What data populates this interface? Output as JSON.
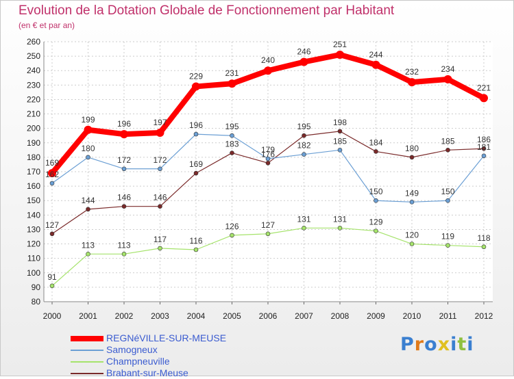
{
  "title": "Evolution de la Dotation Globale de Fonctionnement par Habitant",
  "subtitle": "(en € et par an)",
  "chart_data": {
    "type": "line",
    "x": [
      "2000",
      "2001",
      "2002",
      "2003",
      "2004",
      "2005",
      "2006",
      "2007",
      "2008",
      "2009",
      "2010",
      "2011",
      "2012"
    ],
    "ylim": [
      80,
      260
    ],
    "yticks": [
      80,
      90,
      100,
      110,
      120,
      130,
      140,
      150,
      160,
      170,
      180,
      190,
      200,
      210,
      220,
      230,
      240,
      250,
      260
    ],
    "grid": true,
    "legend_position": "bottom-left",
    "series": [
      {
        "name": "REGNéVILLE-SUR-MEUSE",
        "color": "#ff0000",
        "values": [
          169,
          199,
          196,
          197,
          229,
          231,
          240,
          246,
          251,
          244,
          232,
          234,
          221
        ]
      },
      {
        "name": "Samogneux",
        "color": "#6b9fd4",
        "values": [
          162,
          180,
          172,
          172,
          196,
          195,
          179,
          182,
          185,
          150,
          149,
          150,
          181
        ]
      },
      {
        "name": "Champneuville",
        "color": "#a5e36b",
        "values": [
          91,
          113,
          113,
          117,
          116,
          126,
          127,
          131,
          131,
          129,
          120,
          119,
          118
        ]
      },
      {
        "name": "Brabant-sur-Meuse",
        "color": "#7a2a2a",
        "values": [
          127,
          144,
          146,
          146,
          169,
          183,
          176,
          195,
          198,
          184,
          180,
          185,
          186
        ]
      }
    ]
  },
  "logo": {
    "text": "Proxiti",
    "colors": [
      "#3a7fd0",
      "#e07a1a",
      "#3a7fd0",
      "#e0c020",
      "#3a7fd0",
      "#90c040",
      "#3a7fd0"
    ]
  }
}
